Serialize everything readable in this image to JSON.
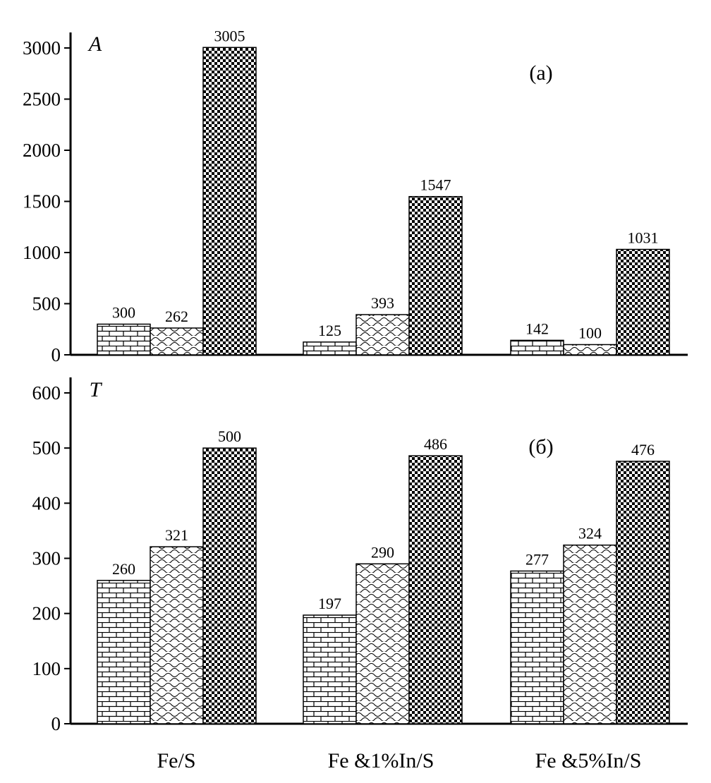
{
  "chart_data": [
    {
      "type": "bar",
      "panel_letter": "A",
      "panel_tag": "(a)",
      "categories": [
        "Fe/S",
        "Fe &1%In/S",
        "Fe &5%In/S"
      ],
      "series": [
        {
          "values": [
            300,
            125,
            142
          ],
          "pattern": "brick"
        },
        {
          "values": [
            262,
            393,
            100
          ],
          "pattern": "wave"
        },
        {
          "values": [
            3005,
            1547,
            1031
          ],
          "pattern": "checker"
        }
      ],
      "yticks": [
        0,
        500,
        1000,
        1500,
        2000,
        2500,
        3000
      ],
      "ylim": [
        0,
        3000
      ],
      "data_labels": true,
      "grid": false
    },
    {
      "type": "bar",
      "panel_letter": "T",
      "panel_tag": "(б)",
      "categories": [
        "Fe/S",
        "Fe &1%In/S",
        "Fe &5%In/S"
      ],
      "series": [
        {
          "values": [
            260,
            197,
            277
          ],
          "pattern": "brick"
        },
        {
          "values": [
            321,
            290,
            324
          ],
          "pattern": "wave"
        },
        {
          "values": [
            500,
            486,
            476
          ],
          "pattern": "checker"
        }
      ],
      "yticks": [
        0,
        100,
        200,
        300,
        400,
        500,
        600
      ],
      "ylim": [
        0,
        600
      ],
      "data_labels": true,
      "grid": false
    }
  ]
}
